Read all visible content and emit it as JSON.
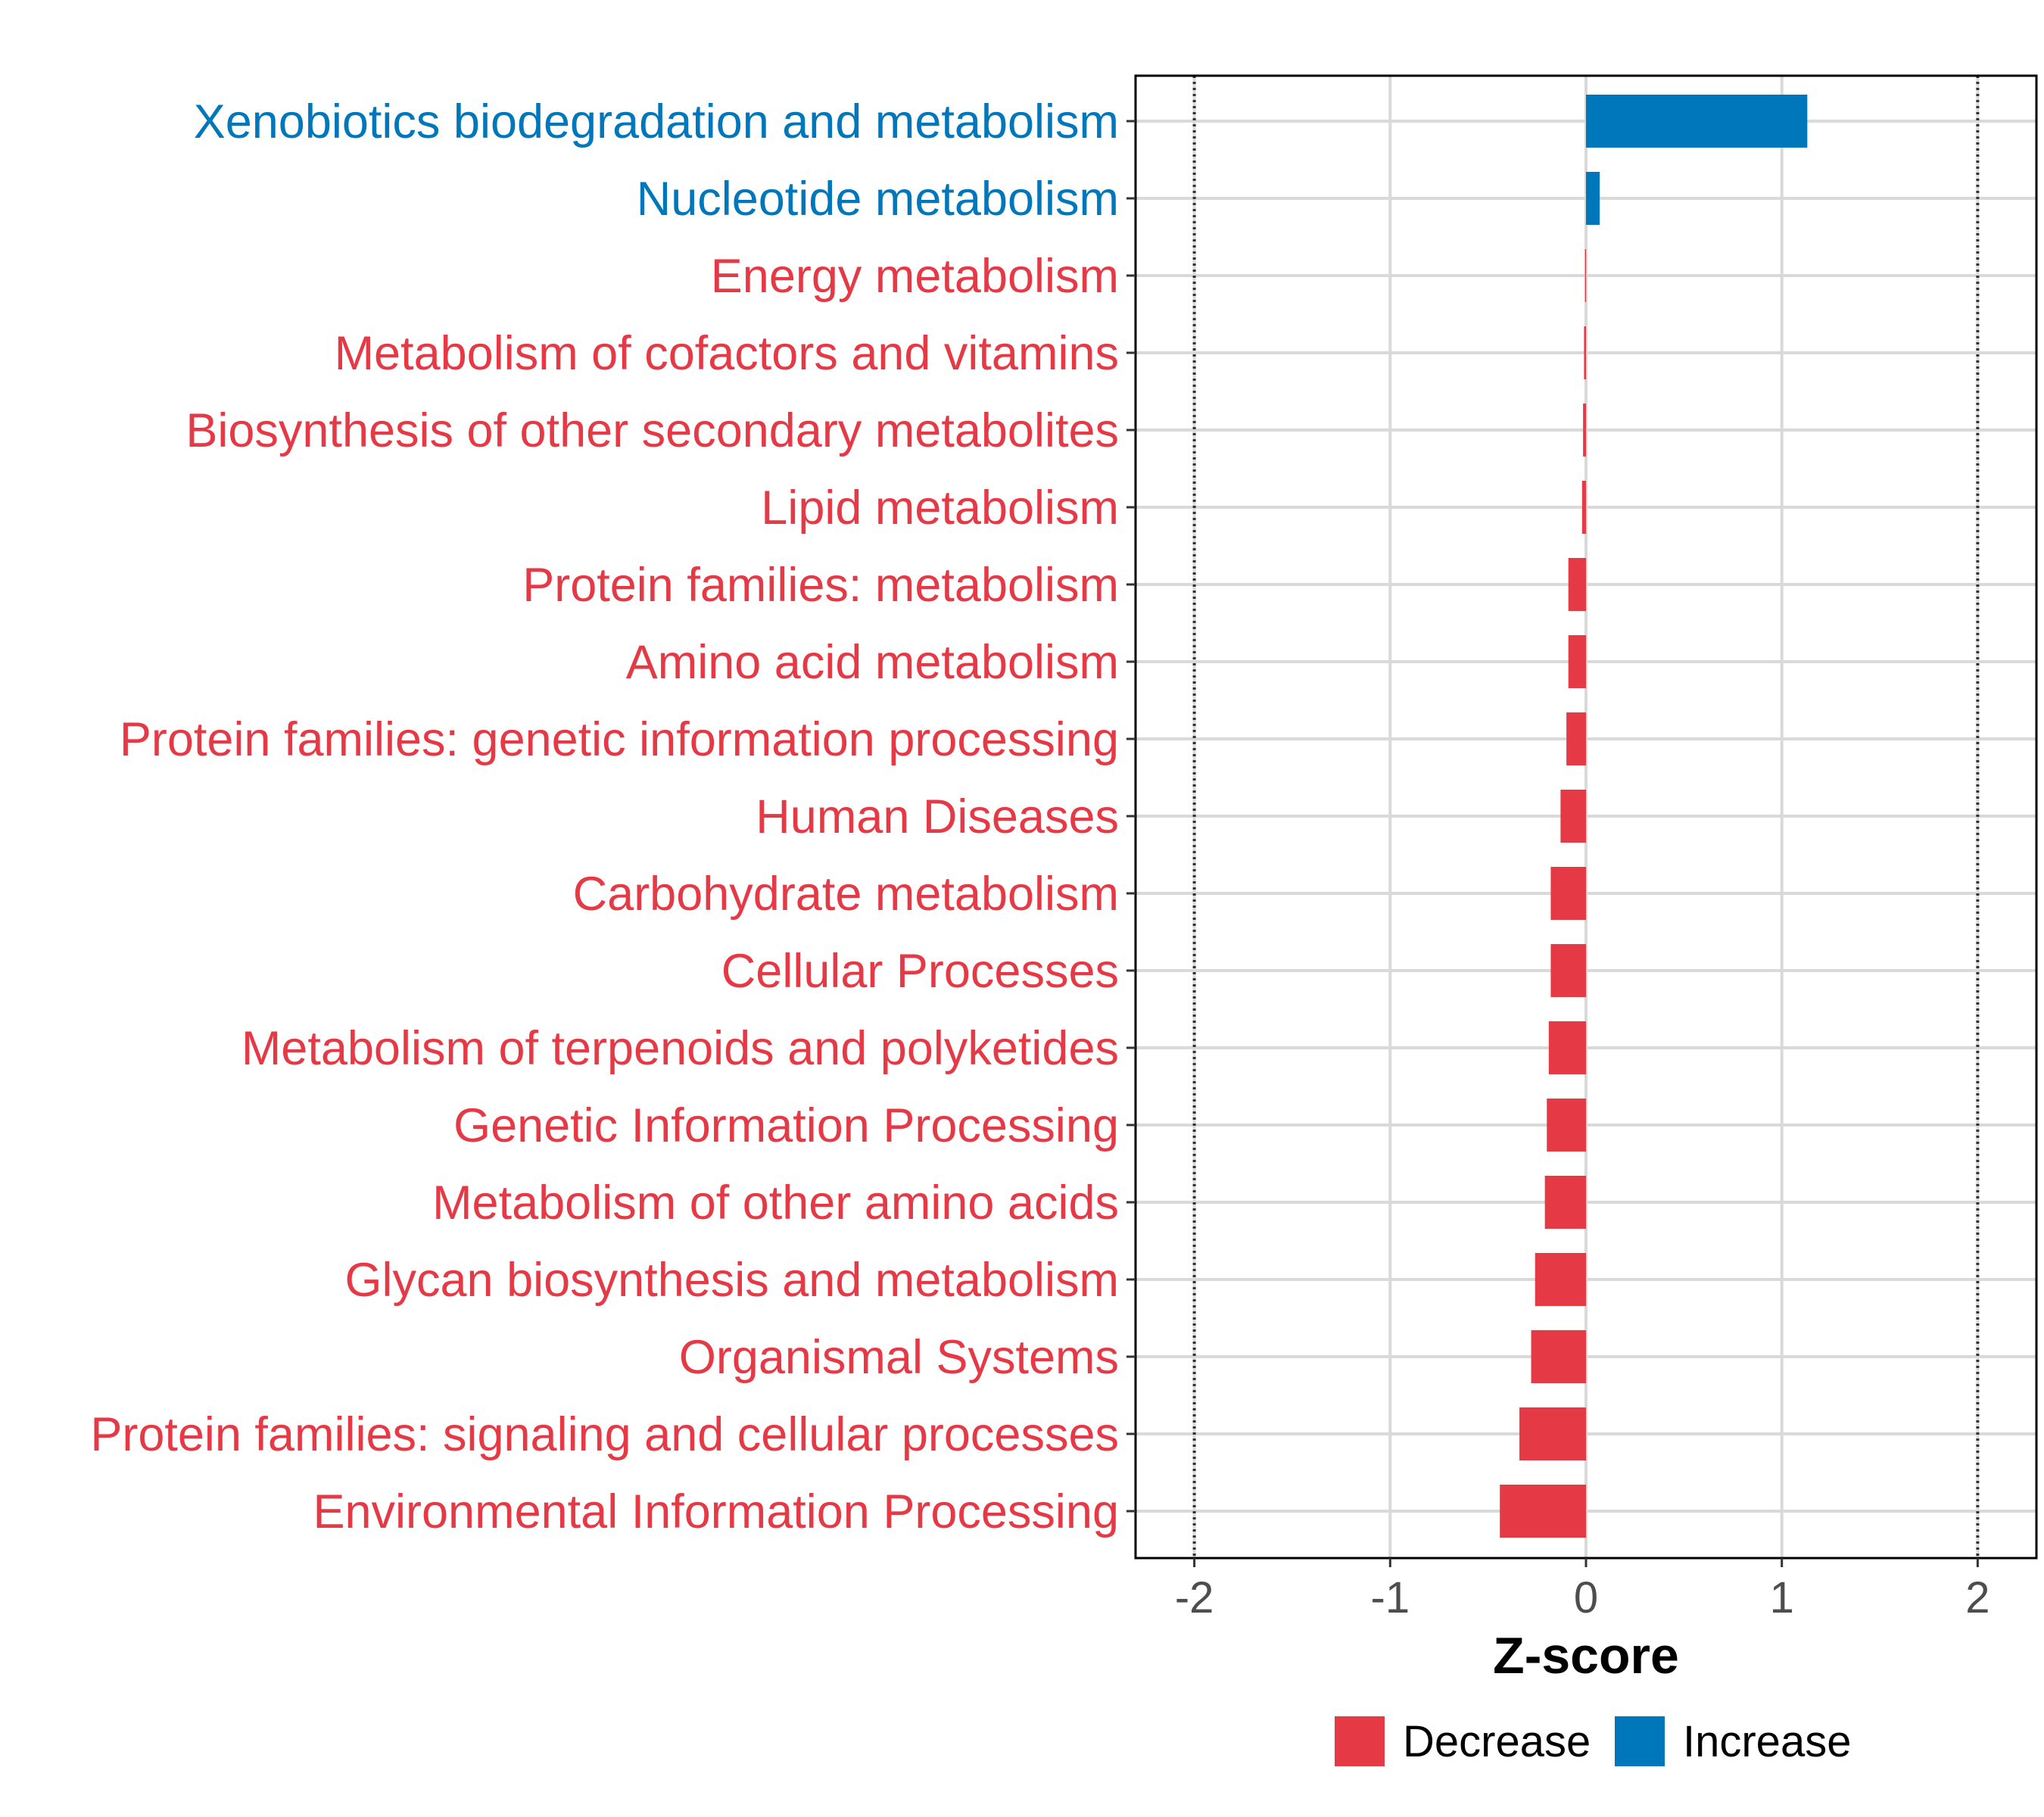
{
  "chart_data": {
    "type": "bar",
    "orientation": "horizontal",
    "title": "",
    "xlabel": "Z-score",
    "ylabel": "",
    "xlim": [
      -2.3,
      2.3
    ],
    "xticks": [
      -2,
      -1,
      0,
      1,
      2
    ],
    "tick_labels": [
      "-2",
      "-1",
      "0",
      "1",
      "2"
    ],
    "reference_lines": [
      -2,
      2
    ],
    "grid": true,
    "categories": [
      "Xenobiotics biodegradation and metabolism",
      "Nucleotide metabolism",
      "Energy metabolism",
      "Metabolism of cofactors and vitamins",
      "Biosynthesis of other secondary metabolites",
      "Lipid metabolism",
      "Protein families: metabolism",
      "Amino acid metabolism",
      "Protein families: genetic information processing",
      "Human Diseases",
      "Carbohydrate metabolism",
      "Cellular Processes",
      "Metabolism of terpenoids and polyketides",
      "Genetic Information Processing",
      "Metabolism of other amino acids",
      "Glycan biosynthesis and metabolism",
      "Organismal Systems",
      "Protein families: signaling and cellular processes",
      "Environmental Information Processing"
    ],
    "values": [
      1.13,
      0.07,
      -0.005,
      -0.01,
      -0.015,
      -0.02,
      -0.09,
      -0.09,
      -0.1,
      -0.13,
      -0.18,
      -0.18,
      -0.19,
      -0.2,
      -0.21,
      -0.26,
      -0.28,
      -0.34,
      -0.44
    ],
    "legend": {
      "position": "bottom",
      "items": [
        {
          "label": "Decrease",
          "color": "#e63946"
        },
        {
          "label": "Increase",
          "color": "#0077bb"
        }
      ]
    },
    "colors": {
      "decrease": "#e63946",
      "increase": "#0077bb"
    }
  }
}
